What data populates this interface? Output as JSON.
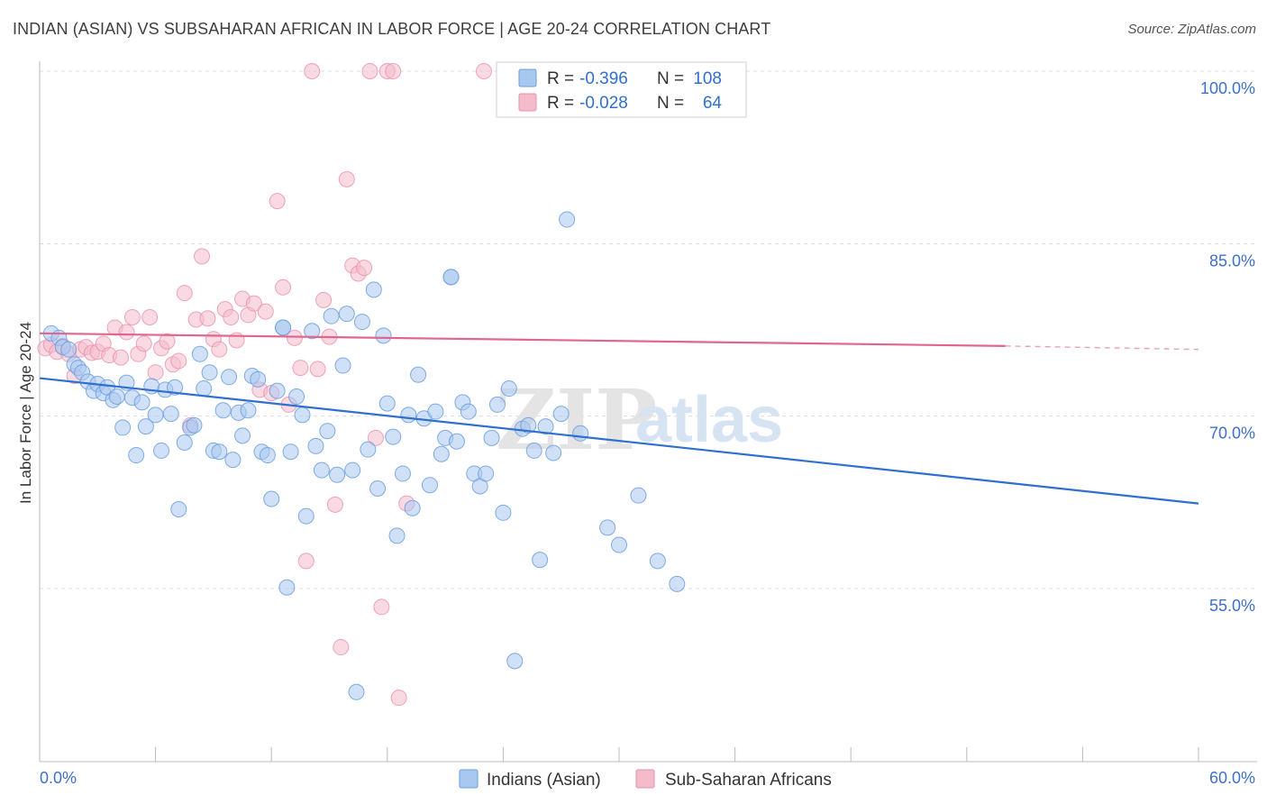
{
  "header": {
    "title": "INDIAN (ASIAN) VS SUBSAHARAN AFRICAN IN LABOR FORCE | AGE 20-24 CORRELATION CHART",
    "source": "Source: ZipAtlas.com"
  },
  "watermark": {
    "zip": "ZIP",
    "atlas": "atlas"
  },
  "chart_data": {
    "type": "scatter",
    "title": "INDIAN (ASIAN) VS SUBSAHARAN AFRICAN IN LABOR FORCE | AGE 20-24 CORRELATION CHART",
    "xlabel": "",
    "ylabel": "In Labor Force | Age 20-24",
    "xlim": [
      0,
      60
    ],
    "ylim": [
      40,
      103
    ],
    "x_tick_labels": [
      "0.0%",
      "60.0%"
    ],
    "y_ticks": [
      100,
      85,
      70,
      55
    ],
    "y_tick_labels": [
      "100.0%",
      "85.0%",
      "70.0%",
      "55.0%"
    ],
    "grid": true,
    "legend_position": "top-center",
    "stats": [
      {
        "r_label": "R =",
        "r_value": "-0.396",
        "n_label": "N =",
        "n_value": "108"
      },
      {
        "r_label": "R =",
        "r_value": "-0.028",
        "n_label": "N =",
        "n_value": "64"
      }
    ],
    "series": [
      {
        "name": "Indians (Asian)",
        "color": "#6a9ee0",
        "fill": "#a9c8f0",
        "trend": {
          "x": [
            0,
            60
          ],
          "y": [
            73.3,
            62.4
          ]
        },
        "points": [
          [
            0.6,
            77.2
          ],
          [
            1.0,
            76.8
          ],
          [
            1.2,
            76.0
          ],
          [
            1.5,
            75.8
          ],
          [
            1.8,
            74.5
          ],
          [
            2.0,
            74.2
          ],
          [
            2.2,
            73.8
          ],
          [
            2.5,
            73.0
          ],
          [
            2.8,
            72.2
          ],
          [
            3.0,
            72.8
          ],
          [
            3.3,
            72.0
          ],
          [
            3.5,
            72.5
          ],
          [
            3.8,
            71.4
          ],
          [
            4.0,
            71.7
          ],
          [
            4.3,
            69.0
          ],
          [
            4.5,
            72.9
          ],
          [
            4.8,
            71.6
          ],
          [
            5.0,
            66.6
          ],
          [
            5.3,
            71.2
          ],
          [
            5.5,
            69.1
          ],
          [
            5.8,
            72.6
          ],
          [
            6.0,
            70.1
          ],
          [
            6.3,
            67.0
          ],
          [
            6.5,
            72.3
          ],
          [
            6.8,
            70.2
          ],
          [
            7.0,
            72.5
          ],
          [
            7.2,
            61.9
          ],
          [
            7.5,
            67.7
          ],
          [
            7.8,
            69.0
          ],
          [
            8.0,
            69.2
          ],
          [
            8.3,
            75.4
          ],
          [
            8.5,
            72.4
          ],
          [
            8.8,
            73.8
          ],
          [
            9.0,
            67.0
          ],
          [
            9.3,
            66.9
          ],
          [
            9.5,
            70.5
          ],
          [
            9.8,
            73.4
          ],
          [
            10.0,
            66.2
          ],
          [
            10.3,
            70.3
          ],
          [
            10.5,
            68.3
          ],
          [
            10.8,
            70.5
          ],
          [
            11.0,
            73.5
          ],
          [
            11.3,
            73.2
          ],
          [
            11.5,
            66.9
          ],
          [
            11.8,
            66.6
          ],
          [
            12.0,
            62.8
          ],
          [
            12.3,
            72.2
          ],
          [
            12.6,
            77.7
          ],
          [
            12.8,
            55.1
          ],
          [
            13.0,
            66.9
          ],
          [
            13.3,
            71.7
          ],
          [
            13.6,
            70.1
          ],
          [
            13.8,
            61.3
          ],
          [
            14.1,
            77.4
          ],
          [
            14.3,
            67.4
          ],
          [
            14.6,
            65.3
          ],
          [
            14.9,
            68.7
          ],
          [
            15.1,
            78.7
          ],
          [
            15.4,
            64.9
          ],
          [
            15.7,
            74.4
          ],
          [
            15.9,
            78.9
          ],
          [
            16.2,
            65.3
          ],
          [
            16.4,
            46.0
          ],
          [
            16.7,
            78.2
          ],
          [
            17.0,
            67.1
          ],
          [
            17.3,
            81.0
          ],
          [
            17.5,
            63.7
          ],
          [
            17.8,
            77.0
          ],
          [
            18.0,
            71.1
          ],
          [
            18.3,
            68.2
          ],
          [
            18.5,
            59.6
          ],
          [
            18.8,
            65.0
          ],
          [
            19.1,
            70.1
          ],
          [
            19.3,
            62.0
          ],
          [
            19.6,
            73.6
          ],
          [
            19.9,
            69.8
          ],
          [
            20.2,
            64.0
          ],
          [
            20.5,
            70.4
          ],
          [
            20.8,
            66.7
          ],
          [
            21.0,
            68.1
          ],
          [
            21.3,
            82.1
          ],
          [
            21.6,
            67.8
          ],
          [
            21.9,
            71.2
          ],
          [
            22.2,
            70.4
          ],
          [
            22.5,
            65.0
          ],
          [
            22.8,
            63.9
          ],
          [
            23.1,
            65.0
          ],
          [
            23.4,
            68.1
          ],
          [
            23.7,
            71.0
          ],
          [
            24.0,
            61.6
          ],
          [
            24.3,
            72.4
          ],
          [
            24.6,
            48.7
          ],
          [
            25.0,
            68.9
          ],
          [
            25.3,
            69.2
          ],
          [
            25.6,
            67.0
          ],
          [
            25.9,
            57.5
          ],
          [
            26.2,
            69.1
          ],
          [
            26.6,
            66.8
          ],
          [
            27.0,
            70.2
          ],
          [
            27.3,
            87.1
          ],
          [
            28.0,
            68.5
          ],
          [
            29.4,
            60.3
          ],
          [
            30.0,
            58.8
          ],
          [
            31.0,
            63.1
          ],
          [
            32.0,
            57.4
          ],
          [
            33.0,
            55.4
          ],
          [
            21.3,
            82.1
          ],
          [
            12.6,
            77.7
          ]
        ]
      },
      {
        "name": "Sub-Saharan Africans",
        "color": "#e890aa",
        "fill": "#f4bccb",
        "trend": {
          "x": [
            0,
            50
          ],
          "y": [
            77.2,
            76.1
          ]
        },
        "trend_dashed": {
          "x": [
            50,
            60
          ],
          "y": [
            76.1,
            75.8
          ]
        },
        "points": [
          [
            0.3,
            75.9
          ],
          [
            0.6,
            76.2
          ],
          [
            0.9,
            75.6
          ],
          [
            1.2,
            76.1
          ],
          [
            1.5,
            75.4
          ],
          [
            1.8,
            73.5
          ],
          [
            2.1,
            75.8
          ],
          [
            2.4,
            76.0
          ],
          [
            2.7,
            75.5
          ],
          [
            3.0,
            75.6
          ],
          [
            3.3,
            76.3
          ],
          [
            3.6,
            75.3
          ],
          [
            3.9,
            77.7
          ],
          [
            4.2,
            75.1
          ],
          [
            4.5,
            77.3
          ],
          [
            4.8,
            78.6
          ],
          [
            5.1,
            75.4
          ],
          [
            5.4,
            76.3
          ],
          [
            5.7,
            78.6
          ],
          [
            6.0,
            73.8
          ],
          [
            6.3,
            75.9
          ],
          [
            6.6,
            76.5
          ],
          [
            6.9,
            74.5
          ],
          [
            7.2,
            74.8
          ],
          [
            7.5,
            80.7
          ],
          [
            7.8,
            69.2
          ],
          [
            8.1,
            78.4
          ],
          [
            8.4,
            83.9
          ],
          [
            8.7,
            78.5
          ],
          [
            9.0,
            76.7
          ],
          [
            9.3,
            75.8
          ],
          [
            9.6,
            79.3
          ],
          [
            9.9,
            78.6
          ],
          [
            10.2,
            76.6
          ],
          [
            10.5,
            80.2
          ],
          [
            10.8,
            78.8
          ],
          [
            11.1,
            79.8
          ],
          [
            11.4,
            72.3
          ],
          [
            11.7,
            79.1
          ],
          [
            12.0,
            72.0
          ],
          [
            12.3,
            88.7
          ],
          [
            12.6,
            81.2
          ],
          [
            12.9,
            71.0
          ],
          [
            13.2,
            76.8
          ],
          [
            13.5,
            74.2
          ],
          [
            13.8,
            57.4
          ],
          [
            14.1,
            100.0
          ],
          [
            14.4,
            74.1
          ],
          [
            14.7,
            80.1
          ],
          [
            15.0,
            76.9
          ],
          [
            15.3,
            62.3
          ],
          [
            15.6,
            49.9
          ],
          [
            15.9,
            90.6
          ],
          [
            16.2,
            83.1
          ],
          [
            16.5,
            82.4
          ],
          [
            16.8,
            82.9
          ],
          [
            17.1,
            100.0
          ],
          [
            17.4,
            68.1
          ],
          [
            17.7,
            53.4
          ],
          [
            18.0,
            100.0
          ],
          [
            18.3,
            100.0
          ],
          [
            18.6,
            45.5
          ],
          [
            19.0,
            62.4
          ],
          [
            23.0,
            100.0
          ]
        ]
      }
    ]
  }
}
